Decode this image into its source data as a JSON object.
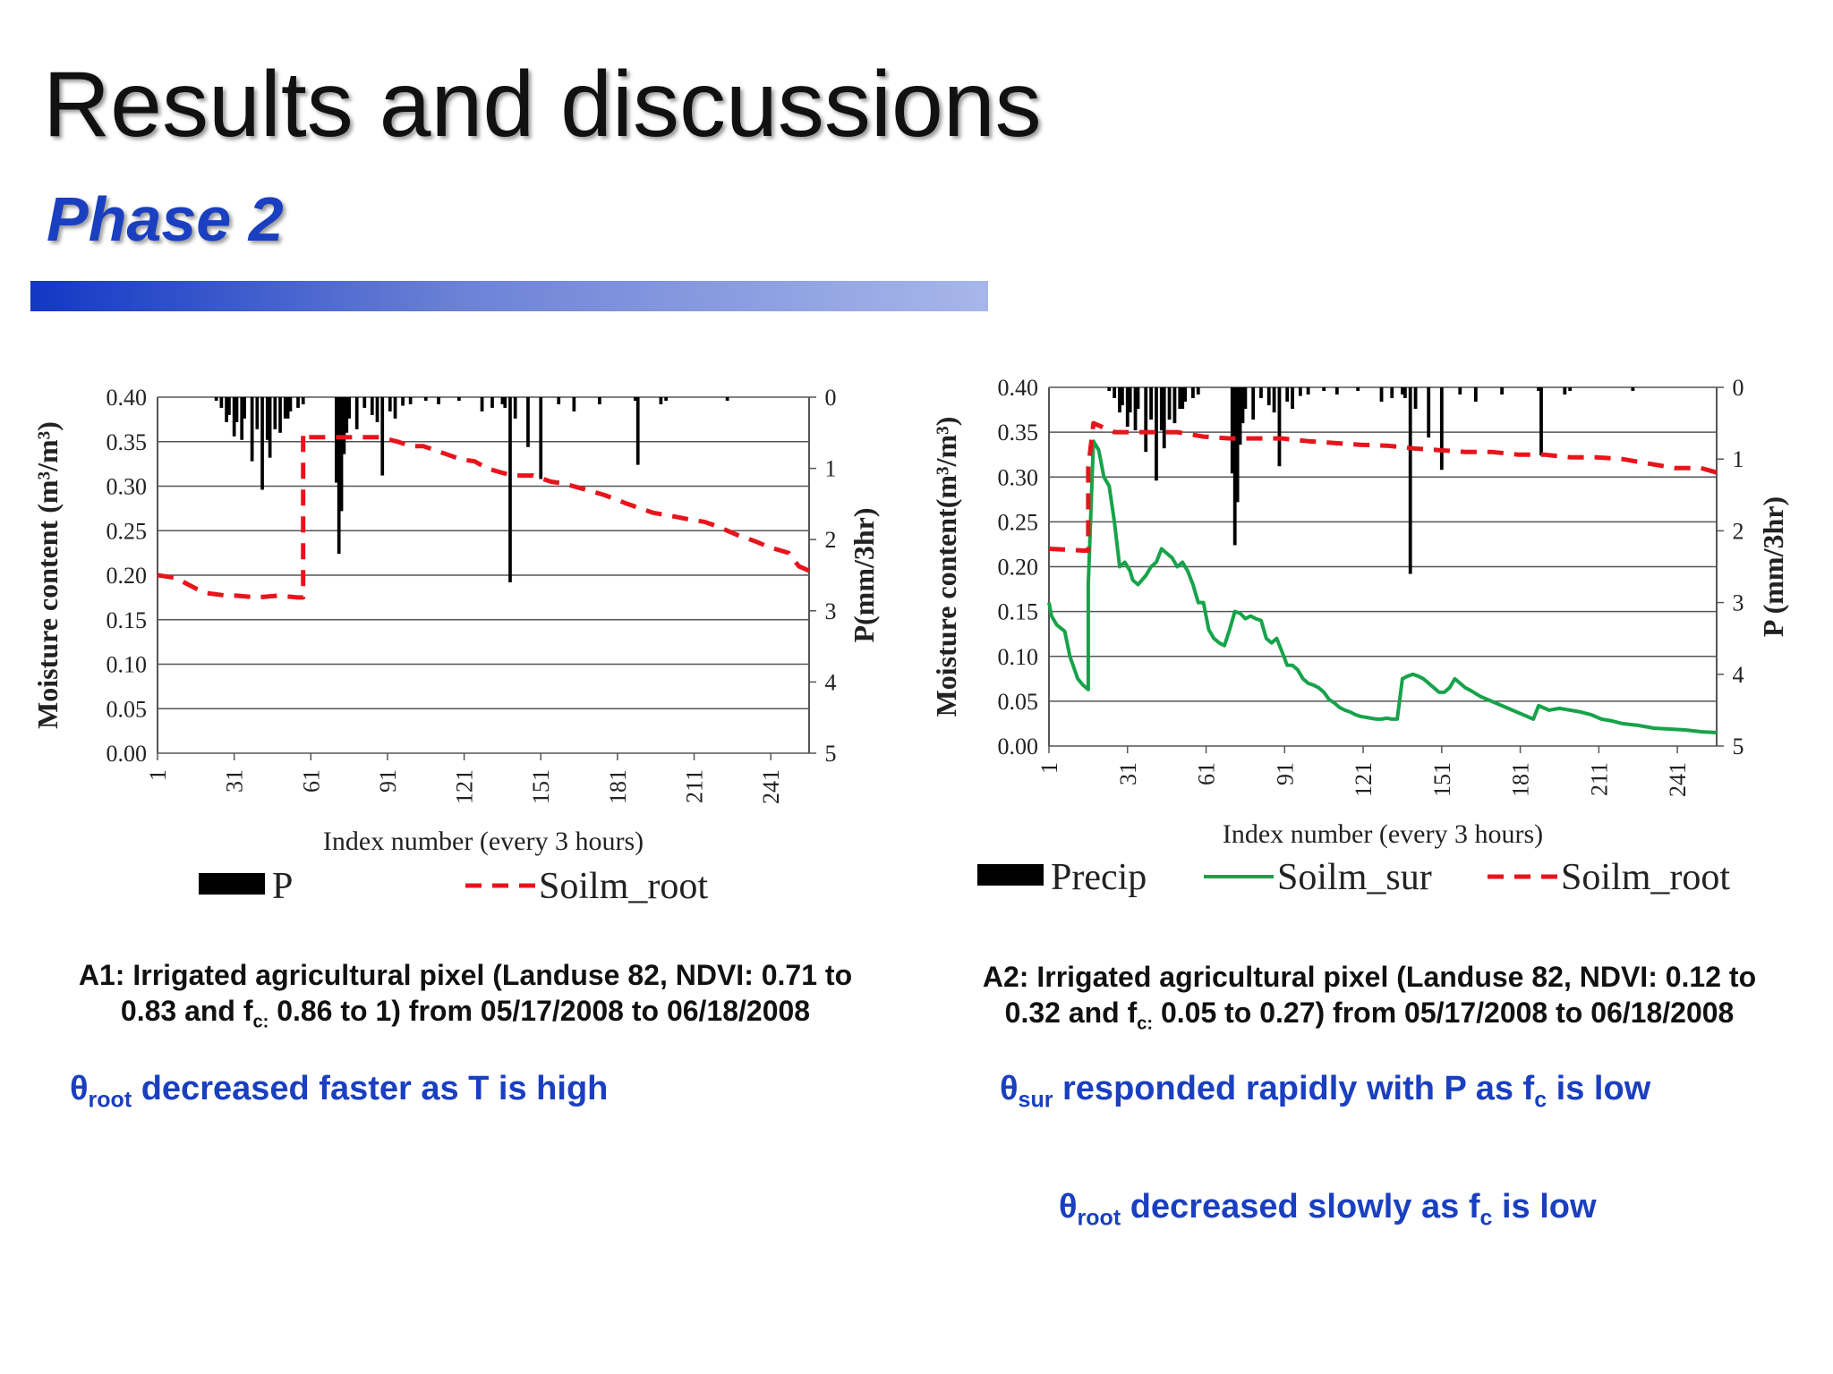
{
  "slide": {
    "title": "Results and discussions",
    "subtitle": "Phase 2"
  },
  "colors": {
    "title_blue": "#1a3fc0",
    "precip": "#000000",
    "soilm_root": "#e8141b",
    "soilm_sur": "#17a34a"
  },
  "captions": {
    "a1": {
      "line1": "A1: Irrigated agricultural pixel (Landuse 82, NDVI: 0.71 to",
      "line2_pre": "0.83 and f",
      "line2_sub": "c:",
      "line2_post": " 0.86 to 1) from 05/17/2008 to 06/18/2008"
    },
    "a2": {
      "line1": "A2: Irrigated agricultural pixel (Landuse 82, NDVI: 0.12 to",
      "line2_pre": "0.32 and f",
      "line2_sub": "c:",
      "line2_post": " 0.05 to 0.27) from 05/17/2008 to 06/18/2008"
    }
  },
  "notes": {
    "n1": {
      "sym": "θ",
      "sub": "root",
      "text": " decreased faster as T is high"
    },
    "n2": {
      "sym": "θ",
      "sub": "sur",
      "text": " responded rapidly with P as f",
      "sub2": "c",
      "text2": " is low"
    },
    "n3": {
      "sym": "θ",
      "sub": "root",
      "text": " decreased slowly as f",
      "sub2": "c",
      "text2": " is low"
    }
  },
  "chart_data": [
    {
      "type": "bar+line",
      "y_label": "Moisture content  (m³/m³)",
      "y2_label": "P(mm/3hr)",
      "xlabel": "Index number (every 3 hours)",
      "ylim": [
        0,
        0.4
      ],
      "y2lim": [
        0,
        5
      ],
      "y2_inverted": true,
      "yticks": [
        "0.00",
        "0.05",
        "0.10",
        "0.15",
        "0.20",
        "0.25",
        "0.30",
        "0.35",
        "0.40"
      ],
      "y2ticks": [
        "0",
        "1",
        "2",
        "3",
        "4",
        "5"
      ],
      "xticks": [
        "1",
        "31",
        "61",
        "91",
        "121",
        "151",
        "181",
        "211",
        "241"
      ],
      "xlim": [
        1,
        256
      ],
      "grid": "horizontal",
      "legend": [
        {
          "label": "P",
          "style": "bar"
        },
        {
          "label": "Soilm_root",
          "style": "dashed-red"
        }
      ],
      "precip": {
        "name": "P",
        "x": [
          24,
          26,
          28,
          29,
          31,
          32,
          34,
          35,
          38,
          40,
          42,
          44,
          45,
          47,
          49,
          51,
          52,
          53,
          56,
          58,
          71,
          72,
          73,
          74,
          75,
          76,
          79,
          82,
          85,
          87,
          89,
          92,
          94,
          97,
          100,
          106,
          111,
          119,
          128,
          132,
          136,
          137,
          139,
          141,
          146,
          151,
          158,
          164,
          174,
          188,
          189,
          198,
          200,
          224
        ],
        "values": [
          0.05,
          0.15,
          0.35,
          0.25,
          0.55,
          0.35,
          0.6,
          0.3,
          0.9,
          0.45,
          1.3,
          0.6,
          0.85,
          0.45,
          0.5,
          0.3,
          0.3,
          0.2,
          0.15,
          0.1,
          1.2,
          2.2,
          1.6,
          0.8,
          0.5,
          0.3,
          0.45,
          0.15,
          0.25,
          0.35,
          1.1,
          0.2,
          0.3,
          0.12,
          0.1,
          0.05,
          0.1,
          0.05,
          0.2,
          0.15,
          0.1,
          0.15,
          2.6,
          0.3,
          0.7,
          1.15,
          0.1,
          0.2,
          0.1,
          0.05,
          0.95,
          0.1,
          0.05,
          0.05
        ]
      },
      "soilm_root": {
        "name": "Soilm_root",
        "x": [
          1,
          8,
          16,
          20,
          28,
          32,
          40,
          48,
          56,
          58,
          58,
          60,
          64,
          70,
          80,
          88,
          95,
          100,
          105,
          115,
          120,
          125,
          130,
          136,
          140,
          148,
          155,
          160,
          170,
          176,
          185,
          195,
          205,
          210,
          215,
          220,
          228,
          235,
          240,
          248,
          252,
          256
        ],
        "values": [
          0.2,
          0.197,
          0.185,
          0.18,
          0.177,
          0.177,
          0.175,
          0.177,
          0.175,
          0.175,
          0.36,
          0.355,
          0.355,
          0.355,
          0.355,
          0.355,
          0.35,
          0.345,
          0.345,
          0.335,
          0.33,
          0.328,
          0.32,
          0.315,
          0.312,
          0.312,
          0.305,
          0.303,
          0.295,
          0.29,
          0.28,
          0.27,
          0.265,
          0.262,
          0.26,
          0.255,
          0.245,
          0.238,
          0.232,
          0.225,
          0.21,
          0.205
        ]
      }
    },
    {
      "type": "bar+line",
      "y_label": "Moisture content(m³/m³)",
      "y2_label": "P (mm/3hr)",
      "xlabel": "Index number (every 3 hours)",
      "ylim": [
        0,
        0.4
      ],
      "y2lim": [
        0,
        5
      ],
      "y2_inverted": true,
      "yticks": [
        "0.00",
        "0.05",
        "0.10",
        "0.15",
        "0.20",
        "0.25",
        "0.30",
        "0.35",
        "0.40"
      ],
      "y2ticks": [
        "0",
        "1",
        "2",
        "3",
        "4",
        "5"
      ],
      "xticks": [
        "1",
        "31",
        "61",
        "91",
        "121",
        "151",
        "181",
        "211",
        "241"
      ],
      "xlim": [
        1,
        256
      ],
      "grid": "horizontal",
      "legend": [
        {
          "label": "Precip",
          "style": "bar"
        },
        {
          "label": "Soilm_sur",
          "style": "solid-green"
        },
        {
          "label": "Soilm_root",
          "style": "dashed-red"
        }
      ],
      "precip": {
        "name": "Precip",
        "x": [
          24,
          26,
          28,
          29,
          31,
          32,
          34,
          35,
          38,
          40,
          42,
          44,
          45,
          47,
          49,
          51,
          52,
          53,
          56,
          58,
          71,
          72,
          73,
          74,
          75,
          76,
          79,
          82,
          85,
          87,
          89,
          92,
          94,
          97,
          100,
          106,
          111,
          119,
          128,
          132,
          136,
          137,
          139,
          141,
          146,
          151,
          158,
          164,
          174,
          188,
          189,
          198,
          200,
          224
        ],
        "values": [
          0.05,
          0.15,
          0.35,
          0.25,
          0.55,
          0.35,
          0.6,
          0.3,
          0.9,
          0.45,
          1.3,
          0.6,
          0.85,
          0.45,
          0.5,
          0.3,
          0.3,
          0.2,
          0.15,
          0.1,
          1.2,
          2.2,
          1.6,
          0.8,
          0.5,
          0.3,
          0.45,
          0.15,
          0.25,
          0.35,
          1.1,
          0.2,
          0.3,
          0.12,
          0.1,
          0.05,
          0.1,
          0.05,
          0.2,
          0.15,
          0.1,
          0.15,
          2.6,
          0.3,
          0.7,
          1.15,
          0.1,
          0.2,
          0.1,
          0.05,
          0.95,
          0.1,
          0.05,
          0.05
        ]
      },
      "soilm_sur": {
        "name": "Soilm_sur",
        "x": [
          1,
          2,
          4,
          7,
          9,
          12,
          14,
          16,
          16,
          18,
          20,
          22,
          24,
          26,
          28,
          30,
          32,
          33,
          35,
          38,
          40,
          42,
          44,
          46,
          48,
          50,
          52,
          54,
          56,
          58,
          60,
          62,
          64,
          66,
          68,
          70,
          72,
          74,
          76,
          78,
          80,
          82,
          84,
          86,
          88,
          90,
          92,
          94,
          96,
          98,
          100,
          102,
          104,
          106,
          108,
          110,
          112,
          114,
          116,
          118,
          120,
          122,
          124,
          126,
          128,
          130,
          132,
          134,
          136,
          138,
          140,
          142,
          144,
          146,
          148,
          150,
          152,
          154,
          156,
          158,
          160,
          162,
          166,
          170,
          174,
          178,
          182,
          186,
          188,
          192,
          196,
          200,
          204,
          208,
          212,
          216,
          220,
          226,
          232,
          238,
          244,
          250,
          256
        ],
        "values": [
          0.16,
          0.145,
          0.135,
          0.128,
          0.1,
          0.075,
          0.068,
          0.063,
          0.18,
          0.34,
          0.33,
          0.3,
          0.29,
          0.25,
          0.2,
          0.205,
          0.195,
          0.185,
          0.18,
          0.19,
          0.2,
          0.205,
          0.22,
          0.215,
          0.21,
          0.2,
          0.205,
          0.195,
          0.18,
          0.16,
          0.16,
          0.13,
          0.12,
          0.115,
          0.112,
          0.13,
          0.15,
          0.148,
          0.142,
          0.145,
          0.142,
          0.14,
          0.12,
          0.115,
          0.12,
          0.105,
          0.09,
          0.09,
          0.085,
          0.075,
          0.07,
          0.068,
          0.065,
          0.06,
          0.052,
          0.048,
          0.043,
          0.04,
          0.038,
          0.035,
          0.033,
          0.032,
          0.031,
          0.03,
          0.03,
          0.031,
          0.03,
          0.03,
          0.075,
          0.078,
          0.08,
          0.078,
          0.075,
          0.07,
          0.065,
          0.06,
          0.06,
          0.065,
          0.075,
          0.07,
          0.065,
          0.062,
          0.055,
          0.05,
          0.045,
          0.04,
          0.035,
          0.03,
          0.045,
          0.04,
          0.042,
          0.04,
          0.038,
          0.035,
          0.03,
          0.028,
          0.025,
          0.023,
          0.02,
          0.019,
          0.018,
          0.016,
          0.015
        ]
      },
      "soilm_root": {
        "name": "Soilm_root",
        "x": [
          1,
          8,
          14,
          16,
          16,
          18,
          22,
          26,
          30,
          40,
          50,
          60,
          70,
          80,
          90,
          100,
          110,
          120,
          130,
          140,
          150,
          160,
          170,
          180,
          190,
          200,
          210,
          220,
          230,
          240,
          250,
          256
        ],
        "values": [
          0.22,
          0.219,
          0.218,
          0.218,
          0.31,
          0.36,
          0.355,
          0.35,
          0.35,
          0.35,
          0.35,
          0.345,
          0.343,
          0.343,
          0.343,
          0.34,
          0.338,
          0.336,
          0.335,
          0.332,
          0.33,
          0.328,
          0.328,
          0.325,
          0.325,
          0.322,
          0.322,
          0.32,
          0.315,
          0.31,
          0.31,
          0.305
        ]
      }
    }
  ]
}
